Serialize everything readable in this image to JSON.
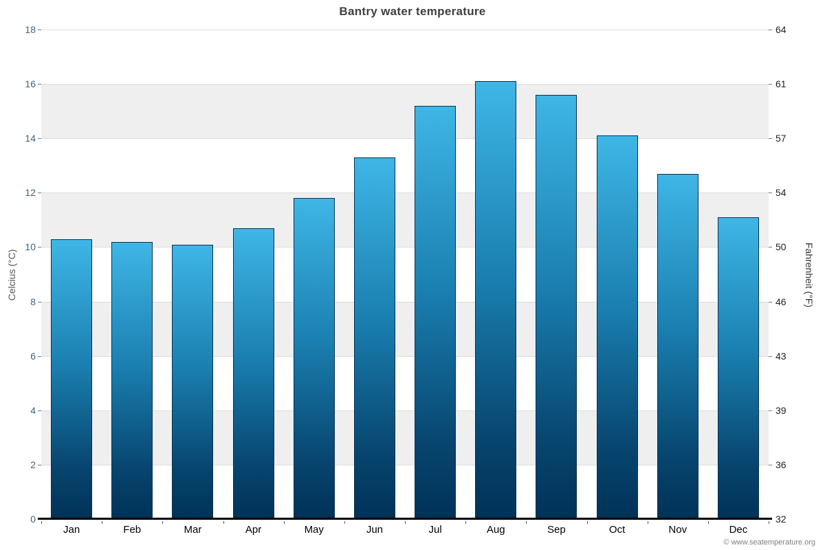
{
  "footer": "© www.seatemperature.org",
  "chart_data": {
    "type": "bar",
    "title": "Bantry water temperature",
    "categories": [
      "Jan",
      "Feb",
      "Mar",
      "Apr",
      "May",
      "Jun",
      "Jul",
      "Aug",
      "Sep",
      "Oct",
      "Nov",
      "Dec"
    ],
    "values": [
      10.3,
      10.2,
      10.1,
      10.7,
      11.8,
      13.3,
      15.2,
      16.1,
      15.6,
      14.1,
      12.7,
      11.1
    ],
    "ylabel_left": "Celcius (°C)",
    "ylabel_right": "Fahrenheit (°F)",
    "ylim": [
      0,
      18
    ],
    "celsius_ticks": [
      0,
      2,
      4,
      6,
      8,
      10,
      12,
      14,
      16,
      18
    ],
    "fahrenheit_ticks": [
      32,
      36,
      39,
      43,
      46,
      50,
      54,
      57,
      61,
      64
    ],
    "grid": true,
    "legend": "none",
    "band_colors": [
      "#ffffff",
      "#efefef"
    ],
    "bar_color_top": "#3eb6e6",
    "bar_color_bottom": "#003257"
  }
}
